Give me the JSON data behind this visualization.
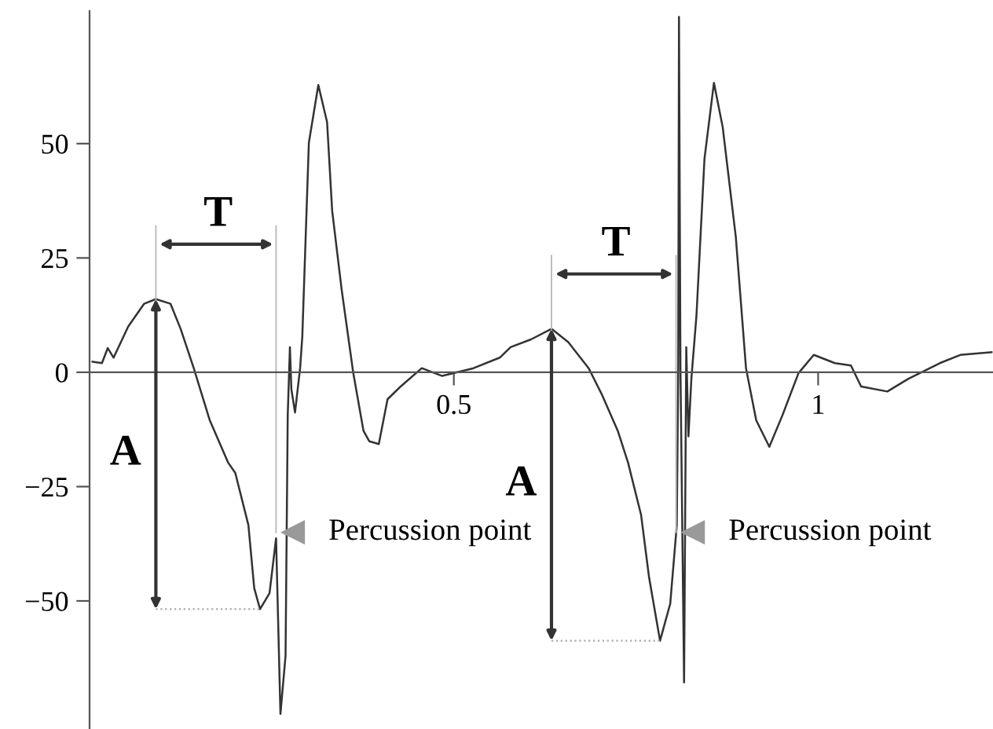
{
  "chart_data": {
    "type": "line",
    "xlim": [
      0,
      1.24
    ],
    "ylim": [
      -78,
      79
    ],
    "xticks": [
      0.5,
      1
    ],
    "yticks": [
      {
        "value": -50,
        "label": "−50"
      },
      {
        "value": -25,
        "label": "−25"
      },
      0,
      25,
      50
    ],
    "grid": false,
    "legend": false,
    "marker": "none",
    "line_style": "solid",
    "series": [
      {
        "color": "#333333",
        "x": [
          0.004,
          0.017,
          0.025,
          0.033,
          0.053,
          0.075,
          0.091,
          0.111,
          0.125,
          0.143,
          0.165,
          0.19,
          0.2,
          0.218,
          0.226,
          0.234,
          0.247,
          0.256,
          0.262,
          0.269,
          0.272,
          0.275,
          0.277,
          0.282,
          0.289,
          0.292,
          0.301,
          0.314,
          0.326,
          0.333,
          0.346,
          0.362,
          0.376,
          0.384,
          0.397,
          0.409,
          0.427,
          0.456,
          0.484,
          0.527,
          0.563,
          0.578,
          0.606,
          0.634,
          0.657,
          0.685,
          0.703,
          0.725,
          0.739,
          0.757,
          0.768,
          0.783,
          0.797,
          0.806,
          0.808,
          0.809,
          0.811,
          0.816,
          0.819,
          0.822,
          0.826,
          0.833,
          0.844,
          0.857,
          0.869,
          0.887,
          0.901,
          0.915,
          0.933,
          0.951,
          0.973,
          0.994,
          1.023,
          1.045,
          1.059,
          1.095,
          1.124,
          1.167,
          1.195,
          1.238
        ],
        "values": [
          2.3,
          2,
          5.3,
          3.2,
          10,
          15,
          16,
          15,
          9.5,
          0.9,
          -10.5,
          -19.7,
          -22,
          -33.4,
          -47.2,
          -51.8,
          -48.3,
          -36.3,
          -74.7,
          -62,
          -9.4,
          5.5,
          -3.7,
          -8.8,
          0.9,
          7.8,
          50.2,
          62.8,
          54.7,
          35.3,
          18.1,
          -0.2,
          -12.8,
          -15.1,
          -15.7,
          -5.9,
          -3.1,
          0.9,
          -0.8,
          0.9,
          3.2,
          5.5,
          7.2,
          9.5,
          6.6,
          0.9,
          -4.8,
          -12.8,
          -19.7,
          -31.2,
          -44.9,
          -58.7,
          -50.6,
          -33.4,
          0.9,
          77.7,
          1,
          -67.8,
          5.5,
          -14,
          -1.4,
          12.4,
          46.7,
          63.3,
          53.6,
          29.6,
          0.9,
          -10.5,
          -16.3,
          -9.4,
          -0.2,
          3.8,
          2,
          1.5,
          -3.1,
          -4.2,
          -1.4,
          2,
          3.8,
          4.4
        ]
      }
    ],
    "annotations": [
      {
        "text": "T",
        "x": 0.091,
        "y": 16
      },
      "A",
      {
        "text": "Percussion point",
        "x": 0.262,
        "y": -35
      },
      {
        "text": "T",
        "x": 0.634,
        "y": 9.5
      },
      "A",
      {
        "text": "Percussion point",
        "x": 0.811,
        "y": -35
      }
    ]
  }
}
